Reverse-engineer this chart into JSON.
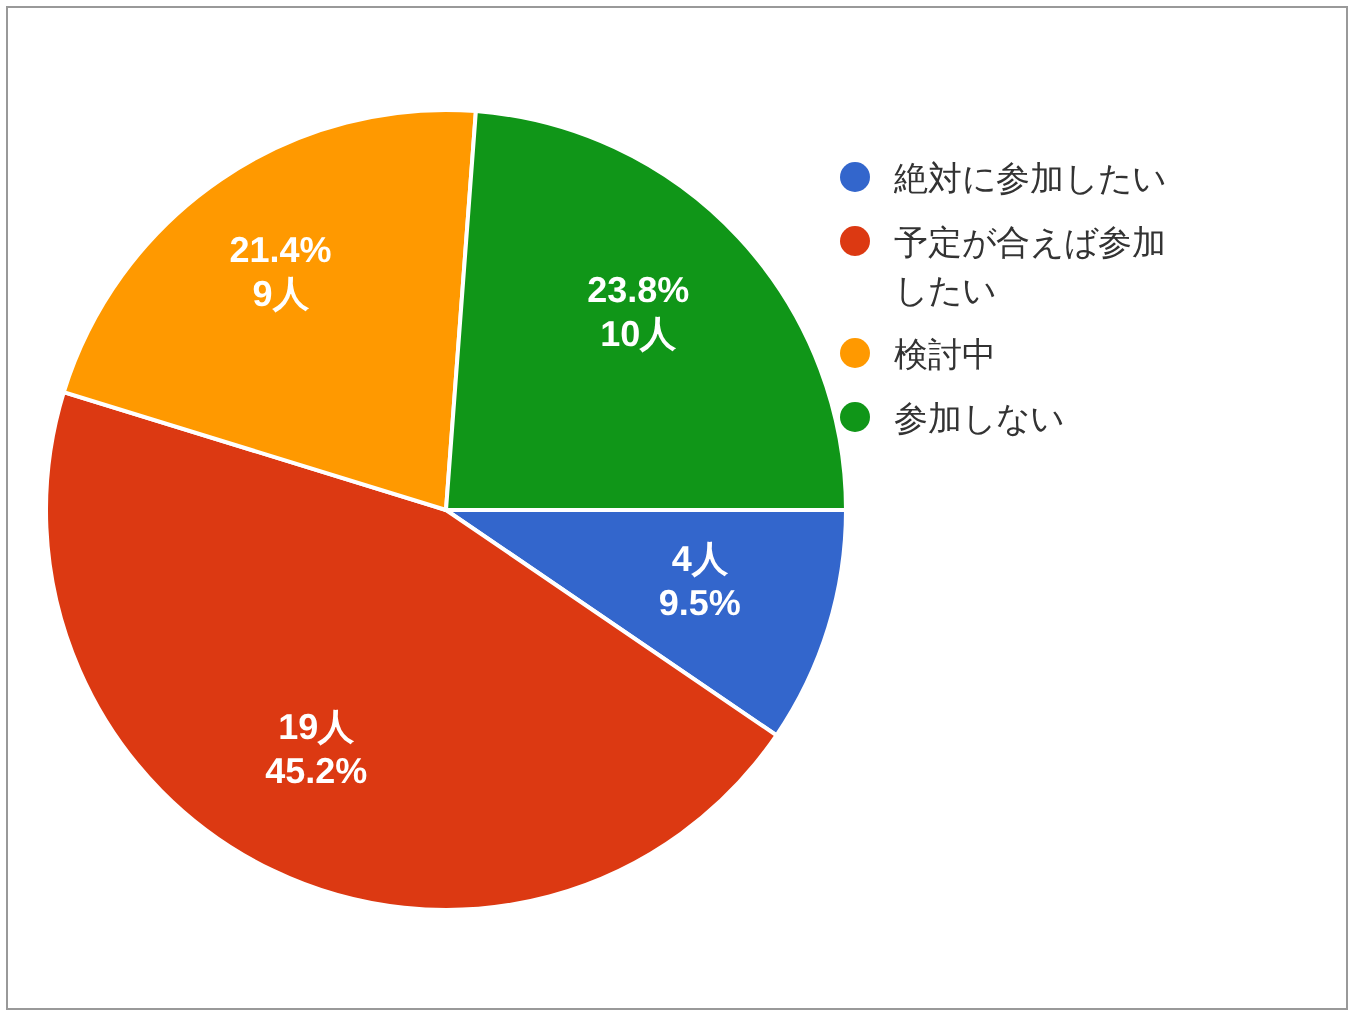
{
  "chart_data": {
    "type": "pie",
    "categories": [
      "絶対に参加したい",
      "予定が合えば参加したい",
      "検討中",
      "参加しない"
    ],
    "values": [
      4,
      19,
      9,
      10
    ],
    "colors": [
      "#3366cc",
      "#dc3912",
      "#ff9900",
      "#109618"
    ],
    "value_labels": [
      "4人\n9.5%",
      "19人\n45.2%",
      "21.4%\n9人",
      "23.8%\n10人"
    ],
    "legend": "top right"
  }
}
